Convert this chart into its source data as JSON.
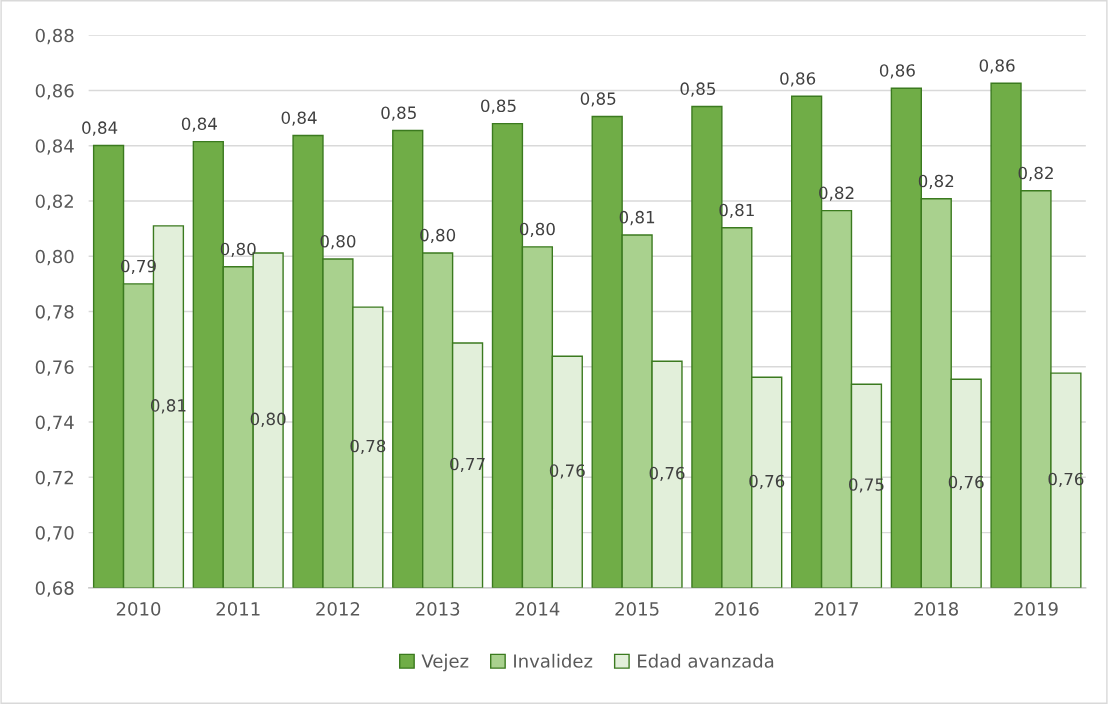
{
  "chart_data": {
    "type": "bar",
    "categories": [
      "2010",
      "2011",
      "2012",
      "2013",
      "2014",
      "2015",
      "2016",
      "2017",
      "2018",
      "2019"
    ],
    "series": [
      {
        "name": "Vejez",
        "color": "#70ad47",
        "values": [
          0.8401,
          0.8415,
          0.8437,
          0.8455,
          0.848,
          0.8506,
          0.8542,
          0.8579,
          0.8608,
          0.8626
        ],
        "value_labels": [
          "0,84",
          "0,84",
          "0,84",
          "0,85",
          "0,85",
          "0,85",
          "0,85",
          "0,86",
          "0,86",
          "0,86"
        ]
      },
      {
        "name": "Invalidez",
        "color": "#a9d18e",
        "values": [
          0.79,
          0.7962,
          0.799,
          0.8012,
          0.8034,
          0.8077,
          0.8103,
          0.8165,
          0.8208,
          0.8237
        ],
        "value_labels": [
          "0,79",
          "0,80",
          "0,80",
          "0,80",
          "0,80",
          "0,81",
          "0,81",
          "0,82",
          "0,82",
          "0,82"
        ]
      },
      {
        "name": "Edad avanzada",
        "color": "#e2efda",
        "values": [
          0.811,
          0.8012,
          0.7816,
          0.7686,
          0.7638,
          0.762,
          0.7562,
          0.7537,
          0.7555,
          0.7577
        ],
        "value_labels": [
          "0,81",
          "0,80",
          "0,78",
          "0,77",
          "0,76",
          "0,76",
          "0,76",
          "0,75",
          "0,76",
          "0,76"
        ]
      }
    ],
    "ylim": [
      0.68,
      0.88
    ],
    "yticks": [
      {
        "value": 0.68,
        "label": "0,68"
      },
      {
        "value": 0.7,
        "label": "0,70"
      },
      {
        "value": 0.72,
        "label": "0,72"
      },
      {
        "value": 0.74,
        "label": "0,74"
      },
      {
        "value": 0.76,
        "label": "0,76"
      },
      {
        "value": 0.78,
        "label": "0,78"
      },
      {
        "value": 0.8,
        "label": "0,80"
      },
      {
        "value": 0.82,
        "label": "0,82"
      },
      {
        "value": 0.84,
        "label": "0,84"
      },
      {
        "value": 0.86,
        "label": "0,86"
      },
      {
        "value": 0.88,
        "label": "0,88"
      }
    ],
    "grid": "y",
    "legend": "bottom"
  }
}
